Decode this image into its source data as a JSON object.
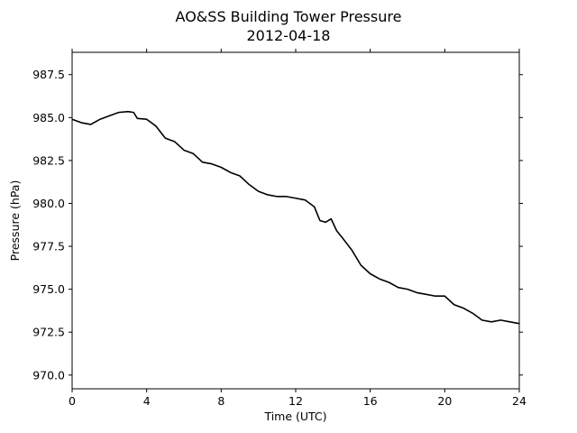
{
  "chart_data": {
    "type": "line",
    "title": "AO&SS Building Tower Pressure",
    "subtitle": "2012-04-18",
    "xlabel": "Time (UTC)",
    "ylabel": "Pressure (hPa)",
    "xlim": [
      0,
      24
    ],
    "ylim": [
      969.2,
      988.8
    ],
    "x_ticks": [
      0,
      4,
      8,
      12,
      16,
      20,
      24
    ],
    "x_tick_labels": [
      "0",
      "4",
      "8",
      "12",
      "16",
      "20",
      "24"
    ],
    "y_ticks": [
      970.0,
      972.5,
      975.0,
      977.5,
      980.0,
      982.5,
      985.0,
      987.5
    ],
    "y_tick_labels": [
      "970.0",
      "972.5",
      "975.0",
      "977.5",
      "980.0",
      "982.5",
      "985.0",
      "987.5"
    ],
    "grid": false,
    "line_color": "#000000",
    "series": [
      {
        "x": [
          0,
          0.5,
          1.0,
          1.5,
          2.0,
          2.5,
          3.0,
          3.3,
          3.5,
          4.0,
          4.5,
          5.0,
          5.5,
          6.0,
          6.5,
          7.0,
          7.5,
          8.0,
          8.5,
          9.0,
          9.5,
          10.0,
          10.5,
          11.0,
          11.5,
          12.0,
          12.5,
          13.0,
          13.3,
          13.6,
          13.9,
          14.2,
          14.5,
          15.0,
          15.5,
          16.0,
          16.5,
          17.0,
          17.5,
          18.0,
          18.5,
          19.0,
          19.5,
          20.0,
          20.5,
          21.0,
          21.5,
          22.0,
          22.5,
          23.0,
          23.5,
          24.0
        ],
        "y": [
          984.9,
          984.7,
          984.6,
          984.9,
          985.1,
          985.3,
          985.35,
          985.3,
          984.95,
          984.9,
          984.5,
          983.8,
          983.6,
          983.1,
          982.9,
          982.4,
          982.3,
          982.1,
          981.8,
          981.6,
          981.1,
          980.7,
          980.5,
          980.4,
          980.4,
          980.3,
          980.2,
          979.8,
          979.0,
          978.9,
          979.1,
          978.4,
          978.0,
          977.3,
          976.4,
          975.9,
          975.6,
          975.4,
          975.1,
          975.0,
          974.8,
          974.7,
          974.6,
          974.6,
          974.1,
          973.9,
          973.6,
          973.2,
          973.1,
          973.2,
          973.1,
          973.0
        ]
      }
    ]
  }
}
